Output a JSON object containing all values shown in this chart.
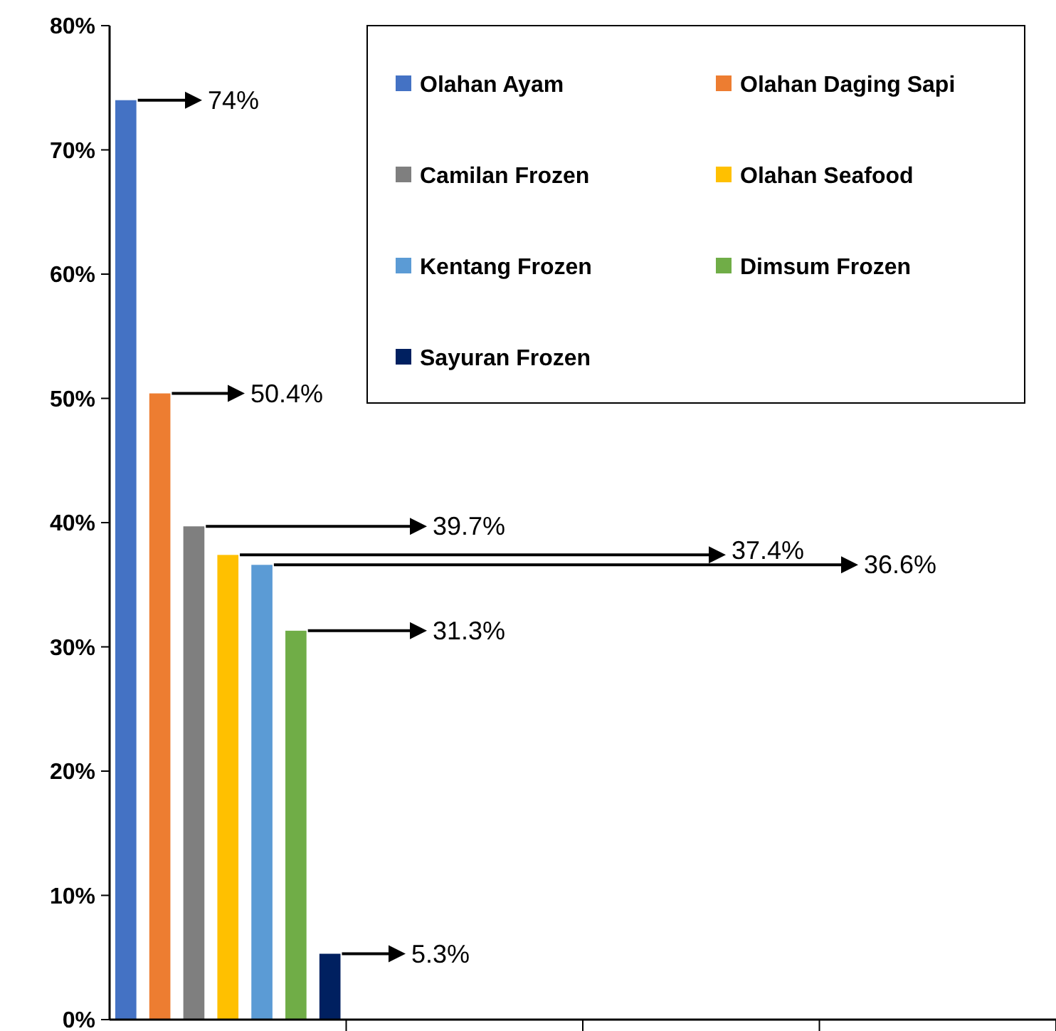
{
  "chart_data": {
    "type": "bar",
    "categories": [
      null,
      null,
      null,
      null
    ],
    "series": [
      {
        "name": "Olahan Ayam",
        "color": "#4472c4",
        "values": [
          74,
          null,
          null,
          null
        ]
      },
      {
        "name": "Olahan Daging Sapi",
        "color": "#ed7d31",
        "values": [
          50.4,
          null,
          null,
          null
        ]
      },
      {
        "name": "Camilan Frozen",
        "color": "#7f7f7f",
        "values": [
          39.7,
          null,
          null,
          null
        ]
      },
      {
        "name": "Olahan Seafood",
        "color": "#ffc000",
        "values": [
          37.4,
          null,
          null,
          null
        ]
      },
      {
        "name": "Kentang Frozen",
        "color": "#5b9bd5",
        "values": [
          36.6,
          null,
          null,
          null
        ]
      },
      {
        "name": "Dimsum Frozen",
        "color": "#70ad47",
        "values": [
          31.3,
          null,
          null,
          null
        ]
      },
      {
        "name": "Sayuran Frozen",
        "color": "#002060",
        "values": [
          5.3,
          null,
          null,
          null
        ]
      }
    ],
    "ylim": [
      0,
      80
    ],
    "yticks": [
      {
        "value": 0,
        "label": "0%"
      },
      {
        "value": 10,
        "label": "10%"
      },
      {
        "value": 20,
        "label": "20%"
      },
      {
        "value": 30,
        "label": "30%"
      },
      {
        "value": 40,
        "label": "40%"
      },
      {
        "value": 50,
        "label": "50%"
      },
      {
        "value": 60,
        "label": "60%"
      },
      {
        "value": 70,
        "label": "70%"
      },
      {
        "value": 80,
        "label": "80%"
      }
    ],
    "annotations": [
      "74%",
      "50.4%",
      "39.7%",
      "37.4%",
      "36.6%",
      "31.3%",
      "5.3%"
    ],
    "grid": false,
    "legend": "top right"
  }
}
